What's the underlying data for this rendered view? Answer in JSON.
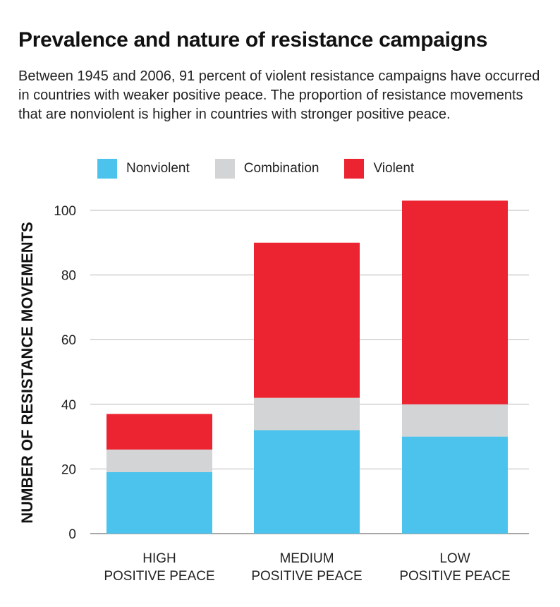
{
  "title": "Prevalence and nature of resistance campaigns",
  "subtitle": "Between 1945 and 2006, 91 percent of violent resistance campaigns have occurred in countries with weaker positive peace. The proportion of resistance movements that are nonviolent is higher in countries with stronger positive peace.",
  "chart_data": {
    "type": "bar",
    "stacked": true,
    "title": "Prevalence and nature of resistance campaigns",
    "xlabel": "",
    "ylabel": "NUMBER OF RESISTANCE MOVEMENTS",
    "ylim": [
      0,
      100
    ],
    "yticks": [
      0,
      20,
      40,
      60,
      80,
      100
    ],
    "grid": true,
    "legend_position": "top",
    "categories": [
      [
        "HIGH",
        "POSITIVE PEACE"
      ],
      [
        "MEDIUM",
        "POSITIVE PEACE"
      ],
      [
        "LOW",
        "POSITIVE PEACE"
      ]
    ],
    "series": [
      {
        "name": "Nonviolent",
        "color": "#4BC3EC",
        "values": [
          19,
          32,
          30
        ]
      },
      {
        "name": "Combination",
        "color": "#D3D4D6",
        "values": [
          7,
          10,
          10
        ]
      },
      {
        "name": "Violent",
        "color": "#EC2330",
        "values": [
          11,
          48,
          63
        ]
      }
    ]
  }
}
